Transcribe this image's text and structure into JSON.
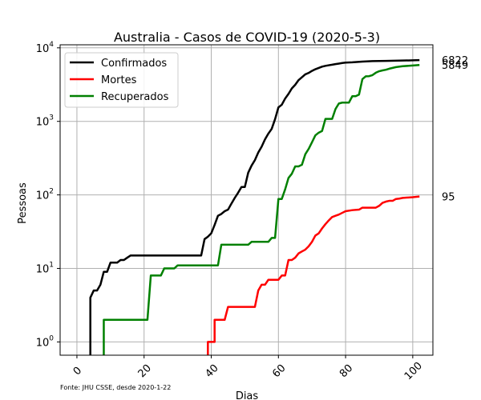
{
  "chart_data": {
    "type": "line",
    "title": "Australia - Casos de COVID-19 (2020-5-3)",
    "xlabel": "Dias",
    "ylabel": "Pessoas",
    "source_note": "Fonte: JHU CSSE, desde 2020-1-22",
    "y_scale": "log",
    "xlim": [
      -5,
      106
    ],
    "ylim": [
      0.66,
      11000
    ],
    "grid": true,
    "legend_position": "upper-left",
    "x_ticks": [
      {
        "value": 0,
        "label": "0"
      },
      {
        "value": 20,
        "label": "20"
      },
      {
        "value": 40,
        "label": "40"
      },
      {
        "value": 60,
        "label": "60"
      },
      {
        "value": 80,
        "label": "80"
      },
      {
        "value": 100,
        "label": "100"
      }
    ],
    "y_ticks": [
      {
        "value": 1,
        "base": "10",
        "exp": "0"
      },
      {
        "value": 10,
        "base": "10",
        "exp": "1"
      },
      {
        "value": 100,
        "base": "10",
        "exp": "2"
      },
      {
        "value": 1000,
        "base": "10",
        "exp": "3"
      },
      {
        "value": 10000,
        "base": "10",
        "exp": "4"
      }
    ],
    "series": [
      {
        "name": "Confirmados",
        "color": "#000000",
        "end_label": "6822",
        "points": [
          [
            4,
            0.4
          ],
          [
            4,
            4
          ],
          [
            5,
            5
          ],
          [
            6,
            5
          ],
          [
            7,
            6
          ],
          [
            8,
            9
          ],
          [
            9,
            9
          ],
          [
            10,
            12
          ],
          [
            11,
            12
          ],
          [
            12,
            12
          ],
          [
            13,
            13
          ],
          [
            14,
            13
          ],
          [
            15,
            14
          ],
          [
            16,
            15
          ],
          [
            36,
            15
          ],
          [
            37,
            15
          ],
          [
            38,
            25
          ],
          [
            39,
            27
          ],
          [
            40,
            30
          ],
          [
            41,
            39
          ],
          [
            42,
            52
          ],
          [
            43,
            55
          ],
          [
            44,
            60
          ],
          [
            45,
            63
          ],
          [
            46,
            76
          ],
          [
            47,
            91
          ],
          [
            48,
            107
          ],
          [
            49,
            128
          ],
          [
            50,
            128
          ],
          [
            51,
            200
          ],
          [
            52,
            250
          ],
          [
            53,
            297
          ],
          [
            54,
            377
          ],
          [
            55,
            452
          ],
          [
            56,
            568
          ],
          [
            57,
            681
          ],
          [
            58,
            791
          ],
          [
            59,
            1071
          ],
          [
            60,
            1549
          ],
          [
            61,
            1682
          ],
          [
            62,
            2044
          ],
          [
            63,
            2364
          ],
          [
            64,
            2810
          ],
          [
            65,
            3143
          ],
          [
            66,
            3640
          ],
          [
            67,
            3984
          ],
          [
            68,
            4361
          ],
          [
            69,
            4559
          ],
          [
            70,
            4862
          ],
          [
            71,
            5116
          ],
          [
            72,
            5330
          ],
          [
            73,
            5550
          ],
          [
            74,
            5687
          ],
          [
            75,
            5797
          ],
          [
            76,
            5895
          ],
          [
            77,
            6010
          ],
          [
            78,
            6108
          ],
          [
            79,
            6215
          ],
          [
            80,
            6303
          ],
          [
            82,
            6350
          ],
          [
            85,
            6500
          ],
          [
            88,
            6600
          ],
          [
            92,
            6650
          ],
          [
            96,
            6700
          ],
          [
            100,
            6762
          ],
          [
            102,
            6822
          ]
        ]
      },
      {
        "name": "Mortes",
        "color": "#ff0000",
        "end_label": "95",
        "points": [
          [
            39,
            0.4
          ],
          [
            39,
            1
          ],
          [
            41,
            1
          ],
          [
            41,
            2
          ],
          [
            44,
            2
          ],
          [
            45,
            3
          ],
          [
            53,
            3
          ],
          [
            54,
            5
          ],
          [
            55,
            6
          ],
          [
            56,
            6
          ],
          [
            57,
            7
          ],
          [
            60,
            7
          ],
          [
            61,
            8
          ],
          [
            62,
            8
          ],
          [
            63,
            13
          ],
          [
            64,
            13
          ],
          [
            65,
            14
          ],
          [
            66,
            16
          ],
          [
            67,
            17
          ],
          [
            68,
            18
          ],
          [
            69,
            20
          ],
          [
            70,
            23
          ],
          [
            71,
            28
          ],
          [
            72,
            30
          ],
          [
            73,
            35
          ],
          [
            74,
            40
          ],
          [
            75,
            45
          ],
          [
            76,
            50
          ],
          [
            77,
            52
          ],
          [
            78,
            54
          ],
          [
            79,
            57
          ],
          [
            80,
            60
          ],
          [
            82,
            62
          ],
          [
            84,
            63
          ],
          [
            85,
            67
          ],
          [
            88,
            67
          ],
          [
            89,
            67
          ],
          [
            90,
            71
          ],
          [
            91,
            78
          ],
          [
            92,
            81
          ],
          [
            93,
            83
          ],
          [
            94,
            83
          ],
          [
            95,
            88
          ],
          [
            96,
            89
          ],
          [
            97,
            91
          ],
          [
            100,
            93
          ],
          [
            102,
            95
          ]
        ]
      },
      {
        "name": "Recuperados",
        "color": "#008000",
        "end_label": "5849",
        "points": [
          [
            8,
            0.4
          ],
          [
            8,
            2
          ],
          [
            21,
            2
          ],
          [
            22,
            8
          ],
          [
            25,
            8
          ],
          [
            26,
            10
          ],
          [
            29,
            10
          ],
          [
            30,
            11
          ],
          [
            42,
            11
          ],
          [
            43,
            21
          ],
          [
            51,
            21
          ],
          [
            52,
            23
          ],
          [
            57,
            23
          ],
          [
            58,
            26
          ],
          [
            59,
            26
          ],
          [
            60,
            88
          ],
          [
            61,
            88
          ],
          [
            62,
            119
          ],
          [
            63,
            170
          ],
          [
            64,
            194
          ],
          [
            65,
            244
          ],
          [
            66,
            244
          ],
          [
            67,
            257
          ],
          [
            68,
            357
          ],
          [
            69,
            422
          ],
          [
            70,
            520
          ],
          [
            71,
            645
          ],
          [
            72,
            702
          ],
          [
            73,
            740
          ],
          [
            74,
            1080
          ],
          [
            76,
            1080
          ],
          [
            77,
            1472
          ],
          [
            78,
            1750
          ],
          [
            79,
            1800
          ],
          [
            81,
            1800
          ],
          [
            82,
            2200
          ],
          [
            83,
            2200
          ],
          [
            84,
            2315
          ],
          [
            85,
            3747
          ],
          [
            86,
            4100
          ],
          [
            87,
            4120
          ],
          [
            88,
            4258
          ],
          [
            89,
            4586
          ],
          [
            90,
            4807
          ],
          [
            91,
            4937
          ],
          [
            92,
            5035
          ],
          [
            93,
            5200
          ],
          [
            95,
            5470
          ],
          [
            97,
            5620
          ],
          [
            100,
            5750
          ],
          [
            102,
            5849
          ]
        ]
      }
    ]
  }
}
